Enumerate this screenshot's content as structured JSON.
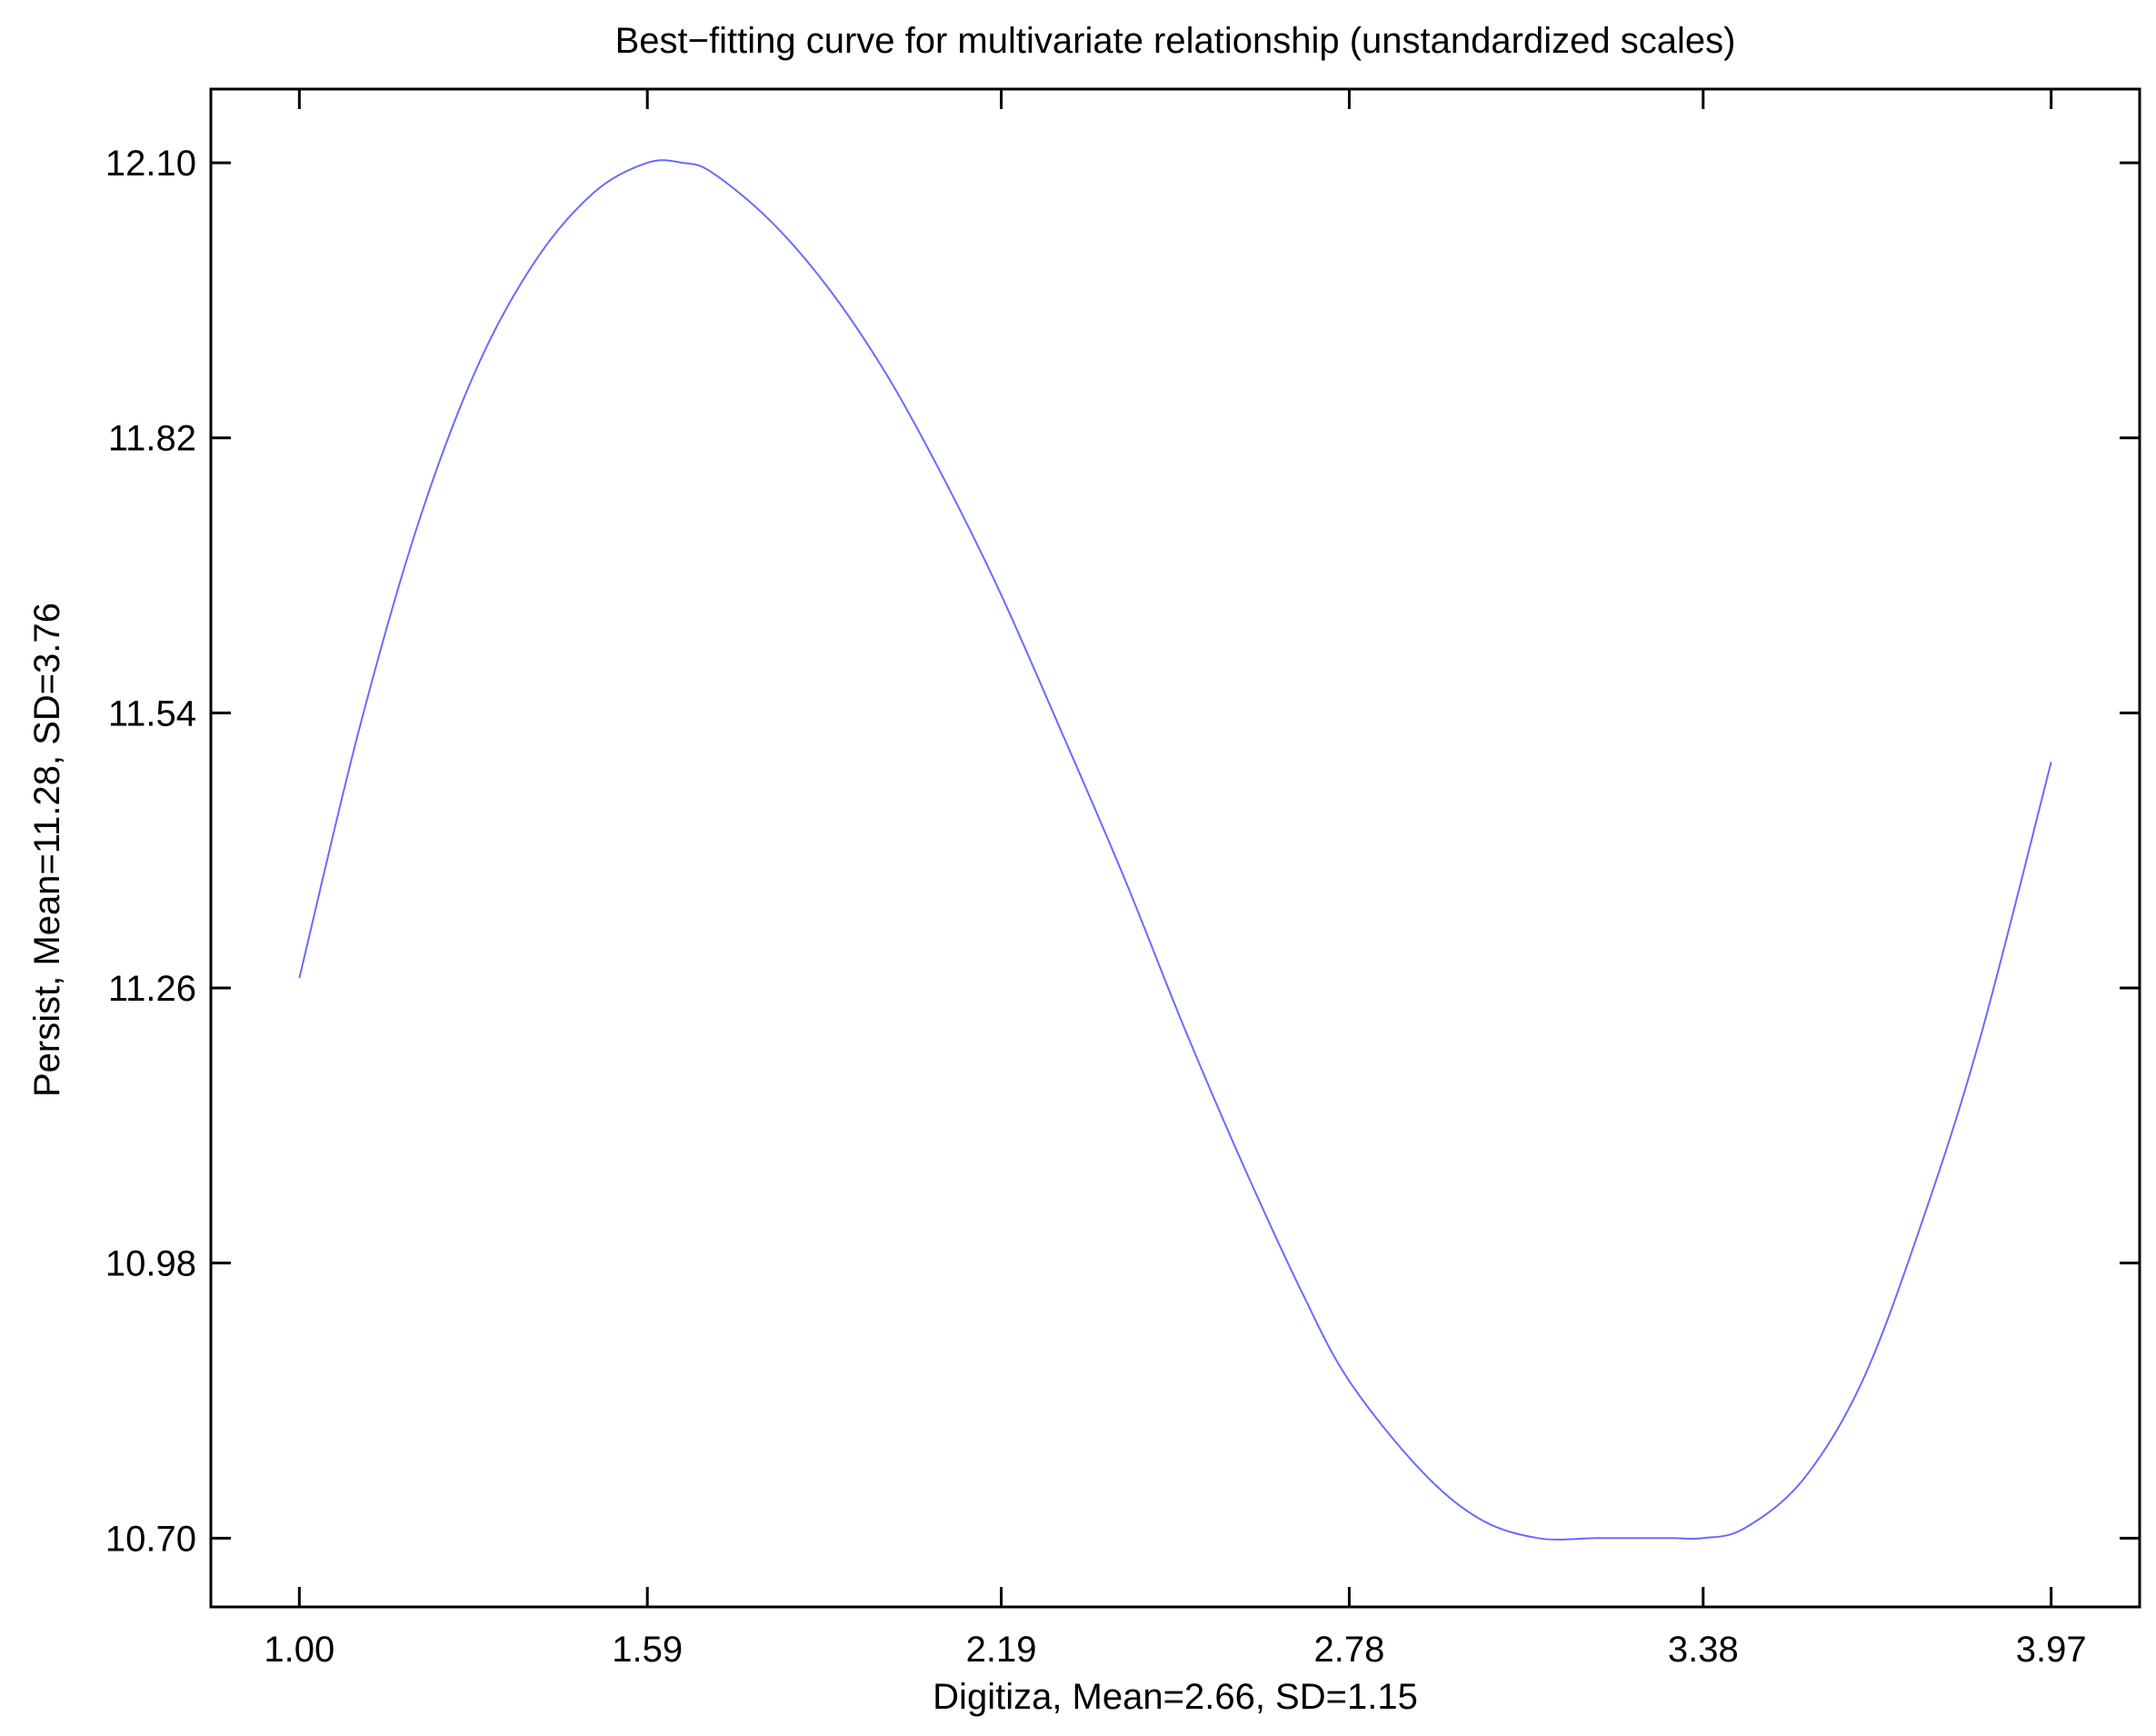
{
  "chart_data": {
    "type": "line",
    "title": "Best−fitting curve for multivariate relationship (unstandardized scales)",
    "xlabel": "Digitiza, Mean=2.66, SD=1.15",
    "ylabel": "Persist, Mean=11.28, SD=3.76",
    "xticks": [
      1.0,
      1.59,
      2.19,
      2.78,
      3.38,
      3.97
    ],
    "xtick_labels": [
      "1.00",
      "1.59",
      "2.19",
      "2.78",
      "3.38",
      "3.97"
    ],
    "yticks": [
      10.7,
      10.98,
      11.26,
      11.54,
      11.82,
      12.1
    ],
    "ytick_labels": [
      "10.70",
      "10.98",
      "11.26",
      "11.54",
      "11.82",
      "12.10"
    ],
    "xlim": [
      0.85,
      4.12
    ],
    "ylim": [
      10.63,
      12.175
    ],
    "grid": false,
    "legend": false,
    "series": [
      {
        "color": "#6a6aff",
        "x": [
          1.0,
          1.1,
          1.2,
          1.3,
          1.4,
          1.5,
          1.59,
          1.65,
          1.7,
          1.8,
          1.9,
          2.0,
          2.1,
          2.19,
          2.3,
          2.4,
          2.5,
          2.6,
          2.7,
          2.78,
          2.9,
          3.0,
          3.1,
          3.2,
          3.3,
          3.33,
          3.38,
          3.45,
          3.55,
          3.65,
          3.75,
          3.85,
          3.97
        ],
        "y": [
          11.27,
          11.52,
          11.73,
          11.89,
          12.0,
          12.07,
          12.1,
          12.1,
          12.09,
          12.04,
          11.97,
          11.88,
          11.77,
          11.66,
          11.51,
          11.37,
          11.22,
          11.08,
          10.95,
          10.86,
          10.77,
          10.72,
          10.7,
          10.7,
          10.7,
          10.7,
          10.7,
          10.71,
          10.76,
          10.86,
          11.02,
          11.21,
          11.49
        ]
      }
    ]
  }
}
